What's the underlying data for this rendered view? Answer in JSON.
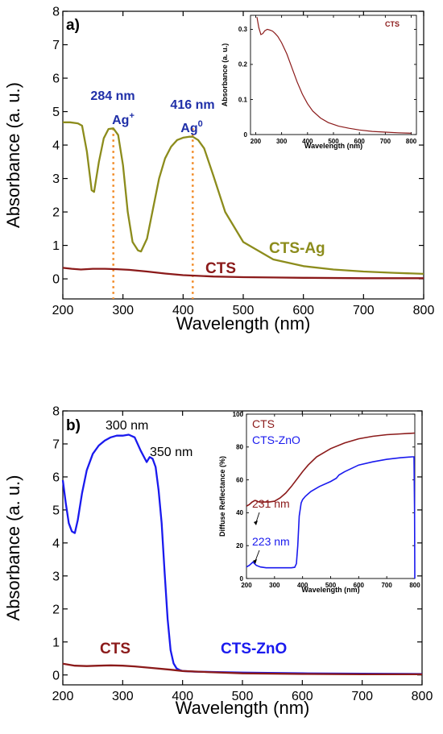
{
  "colors": {
    "cts": "#8b1a1a",
    "cts_ag": "#8c8c1c",
    "cts_zno": "#1a1aee",
    "annot_blue": "#1f2fa8",
    "guide": "#f28c28",
    "axis": "#000000"
  },
  "chart_data": [
    {
      "panel": "a)",
      "type": "line",
      "xlabel": "Wavelength (nm)",
      "ylabel": "Absorbance (a. u.)",
      "xlim": [
        200,
        800
      ],
      "ylim": [
        -0.6,
        8
      ],
      "xticks": [
        200,
        300,
        400,
        500,
        600,
        700,
        800
      ],
      "yticks": [
        0,
        1,
        2,
        3,
        4,
        5,
        6,
        7,
        8
      ],
      "series": [
        {
          "name": "CTS-Ag",
          "color": "#8c8c1c",
          "x": [
            200,
            212,
            225,
            232,
            240,
            248,
            252,
            260,
            268,
            276,
            284,
            292,
            300,
            308,
            316,
            325,
            330,
            340,
            350,
            360,
            370,
            380,
            390,
            400,
            410,
            416,
            425,
            435,
            450,
            470,
            500,
            550,
            600,
            650,
            700,
            750,
            800
          ],
          "y": [
            4.68,
            4.68,
            4.65,
            4.58,
            3.8,
            2.65,
            2.6,
            3.5,
            4.2,
            4.48,
            4.5,
            4.3,
            3.4,
            2.0,
            1.1,
            0.85,
            0.82,
            1.2,
            2.1,
            3.0,
            3.6,
            3.95,
            4.15,
            4.22,
            4.25,
            4.25,
            4.15,
            3.9,
            3.1,
            2.0,
            1.1,
            0.58,
            0.38,
            0.28,
            0.22,
            0.18,
            0.15
          ]
        },
        {
          "name": "CTS",
          "color": "#8b1a1a",
          "x": [
            200,
            215,
            230,
            250,
            270,
            290,
            310,
            340,
            370,
            400,
            450,
            500,
            550,
            600,
            700,
            800
          ],
          "y": [
            0.33,
            0.3,
            0.28,
            0.3,
            0.3,
            0.29,
            0.27,
            0.22,
            0.16,
            0.11,
            0.07,
            0.05,
            0.04,
            0.03,
            0.02,
            0.02
          ]
        }
      ],
      "annotations": [
        {
          "text": "284 nm",
          "sup_text": "Ag",
          "sup": "+",
          "x": 284
        },
        {
          "text": "416 nm",
          "sup_text": "Ag",
          "sup": "0",
          "x": 416
        }
      ],
      "series_labels": {
        "cts_ag": "CTS-Ag",
        "cts": "CTS"
      },
      "inset": {
        "type": "line",
        "xlabel": "Wavelength (nm)",
        "ylabel": "Absorbance (a. u.)",
        "xlim": [
          180,
          820
        ],
        "ylim": [
          0,
          0.34
        ],
        "xticks": [
          200,
          300,
          400,
          500,
          600,
          700,
          800
        ],
        "yticks": [
          0.0,
          0.1,
          0.2,
          0.3
        ],
        "legend": "CTS",
        "series": [
          {
            "name": "CTS",
            "color": "#8b1a1a",
            "x": [
              205,
              212,
              220,
              228,
              235,
              245,
              255,
              265,
              275,
              285,
              300,
              320,
              340,
              360,
              380,
              400,
              420,
              450,
              480,
              520,
              560,
              600,
              650,
              700,
              750,
              800
            ],
            "y": [
              0.335,
              0.305,
              0.285,
              0.288,
              0.296,
              0.3,
              0.298,
              0.295,
              0.288,
              0.28,
              0.262,
              0.23,
              0.19,
              0.15,
              0.115,
              0.088,
              0.067,
              0.047,
              0.034,
              0.024,
              0.018,
              0.013,
              0.009,
              0.007,
              0.005,
              0.004
            ]
          }
        ]
      }
    },
    {
      "panel": "b)",
      "type": "line",
      "xlabel": "Wavelength (nm)",
      "ylabel": "Absorbance (a. u.)",
      "xlim": [
        200,
        800
      ],
      "ylim": [
        -0.3,
        8
      ],
      "xticks": [
        200,
        300,
        400,
        500,
        600,
        700,
        800
      ],
      "yticks": [
        0,
        1,
        2,
        3,
        4,
        5,
        6,
        7,
        8
      ],
      "series": [
        {
          "name": "CTS-ZnO",
          "color": "#1a1aee",
          "x": [
            200,
            205,
            210,
            215,
            220,
            225,
            232,
            240,
            250,
            260,
            270,
            280,
            290,
            300,
            310,
            320,
            330,
            340,
            345,
            350,
            355,
            360,
            365,
            370,
            375,
            380,
            385,
            390,
            395,
            400,
            420,
            450,
            500,
            600,
            700,
            800
          ],
          "y": [
            5.9,
            5.2,
            4.6,
            4.35,
            4.3,
            4.7,
            5.5,
            6.2,
            6.7,
            6.95,
            7.1,
            7.2,
            7.25,
            7.25,
            7.28,
            7.2,
            6.8,
            6.45,
            6.6,
            6.55,
            6.3,
            5.6,
            4.6,
            3.1,
            1.7,
            0.75,
            0.35,
            0.2,
            0.15,
            0.12,
            0.1,
            0.09,
            0.07,
            0.05,
            0.04,
            0.03
          ]
        },
        {
          "name": "CTS",
          "color": "#8b1a1a",
          "x": [
            200,
            220,
            240,
            260,
            280,
            300,
            320,
            350,
            380,
            400,
            450,
            500,
            600,
            700,
            800
          ],
          "y": [
            0.34,
            0.28,
            0.27,
            0.28,
            0.29,
            0.28,
            0.26,
            0.21,
            0.16,
            0.12,
            0.08,
            0.05,
            0.03,
            0.02,
            0.02
          ]
        }
      ],
      "annotations": [
        {
          "text": "300 nm",
          "x": 300
        },
        {
          "text": "350 nm",
          "x": 350
        }
      ],
      "series_labels": {
        "cts": "CTS",
        "cts_zno": "CTS-ZnO"
      },
      "inset": {
        "type": "line",
        "xlabel": "Wavelength (nm)",
        "ylabel": "Diffuse Reflectance (%)",
        "xlim": [
          200,
          800
        ],
        "ylim": [
          0,
          100
        ],
        "xticks": [
          200,
          300,
          400,
          500,
          600,
          700,
          800
        ],
        "yticks": [
          0,
          20,
          40,
          60,
          80,
          100
        ],
        "legend": [
          "CTS",
          "CTS-ZnO"
        ],
        "annotations": [
          {
            "text": "231 nm",
            "x": 231,
            "series": "CTS"
          },
          {
            "text": "223 nm",
            "x": 223,
            "series": "CTS-ZnO"
          }
        ],
        "series": [
          {
            "name": "CTS",
            "color": "#8b1a1a",
            "x": [
              200,
              210,
              220,
              231,
              245,
              260,
              280,
              300,
              320,
              340,
              360,
              380,
              400,
              420,
              450,
              500,
              550,
              600,
              650,
              700,
              750,
              800
            ],
            "y": [
              44,
              45,
              46.5,
              47.5,
              46.5,
              46.5,
              46.5,
              47,
              49,
              52,
              56,
              60.5,
              65,
              69,
              74,
              79,
              82.5,
              85,
              86.5,
              87.5,
              88,
              88.5
            ]
          },
          {
            "name": "CTS-ZnO",
            "color": "#1a1aee",
            "x": [
              200,
              210,
              223,
              235,
              250,
              270,
              300,
              330,
              360,
              372,
              378,
              383,
              388,
              395,
              400,
              410,
              430,
              460,
              500,
              520,
              530,
              550,
              600,
              650,
              700,
              750,
              790,
              797,
              799,
              800
            ],
            "y": [
              7,
              8,
              10,
              8,
              7,
              6.5,
              6.5,
              6.5,
              6.5,
              6.8,
              9,
              20,
              38,
              46,
              48,
              50,
              53,
              56,
              59,
              61,
              63,
              65,
              69,
              71,
              72.5,
              73.5,
              74,
              74,
              40,
              0
            ]
          }
        ]
      }
    }
  ]
}
